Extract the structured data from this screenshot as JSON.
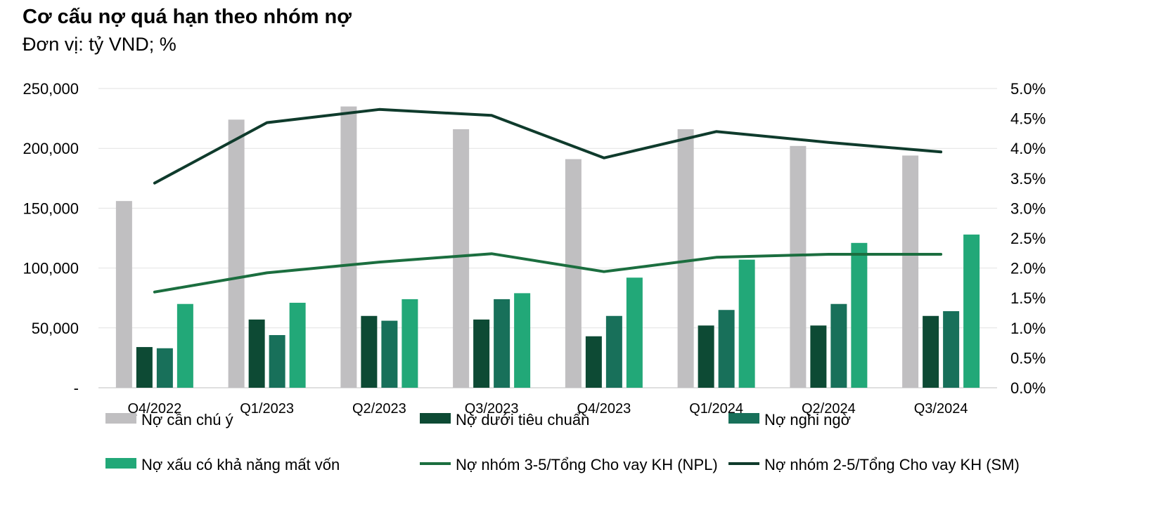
{
  "title": "Cơ cấu nợ quá hạn theo nhóm nợ",
  "subtitle": "Đơn vị: tỷ VND; %",
  "chart_data": {
    "type": "bar",
    "categories": [
      "Q4/2022",
      "Q1/2023",
      "Q2/2023",
      "Q3/2023",
      "Q4/2023",
      "Q1/2024",
      "Q2/2024",
      "Q3/2024"
    ],
    "series": [
      {
        "name": "Nợ cần chú ý",
        "kind": "bar",
        "axis": "left",
        "color": "#c0bfc1",
        "values": [
          156000,
          224000,
          235000,
          216000,
          191000,
          216000,
          202000,
          194000
        ]
      },
      {
        "name": "Nợ dưới tiêu chuẩn",
        "kind": "bar",
        "axis": "left",
        "color": "#0d4a34",
        "values": [
          34000,
          57000,
          60000,
          57000,
          43000,
          52000,
          52000,
          60000
        ]
      },
      {
        "name": "Nợ nghi ngờ",
        "kind": "bar",
        "axis": "left",
        "color": "#18705a",
        "values": [
          33000,
          44000,
          56000,
          74000,
          60000,
          65000,
          70000,
          64000
        ]
      },
      {
        "name": "Nợ xấu có khả năng mất vốn",
        "kind": "bar",
        "axis": "left",
        "color": "#22a878",
        "values": [
          70000,
          71000,
          74000,
          79000,
          92000,
          107000,
          121000,
          128000
        ]
      },
      {
        "name": "Nợ nhóm 3-5/Tổng Cho vay KH (NPL)",
        "kind": "line",
        "axis": "right",
        "color": "#1b6e3f",
        "values": [
          1.6,
          1.92,
          2.1,
          2.24,
          1.94,
          2.18,
          2.23,
          2.23
        ]
      },
      {
        "name": "Nợ nhóm 2-5/Tổng Cho vay KH (SM)",
        "kind": "line",
        "axis": "right",
        "color": "#0f3b2c",
        "values": [
          3.42,
          4.43,
          4.65,
          4.55,
          3.84,
          4.28,
          4.1,
          3.94
        ]
      }
    ],
    "y_left": {
      "ylim": [
        0,
        250000
      ],
      "ticks": [
        "-",
        "50,000",
        "100,000",
        "150,000",
        "200,000",
        "250,000"
      ]
    },
    "y_right": {
      "ylim": [
        0,
        5.0
      ],
      "ticks": [
        "0.0%",
        "0.5%",
        "1.0%",
        "1.5%",
        "2.0%",
        "2.5%",
        "3.0%",
        "3.5%",
        "4.0%",
        "4.5%",
        "5.0%"
      ]
    },
    "grid": true,
    "legend": "bottom"
  }
}
